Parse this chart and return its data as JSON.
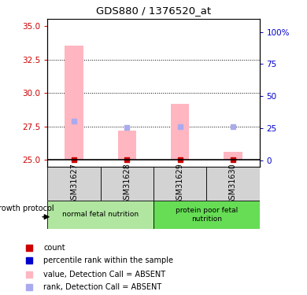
{
  "title": "GDS880 / 1376520_at",
  "samples": [
    "GSM31627",
    "GSM31628",
    "GSM31629",
    "GSM31630"
  ],
  "sample_bg_color": "#D3D3D3",
  "ylim_left": [
    24.5,
    35.5
  ],
  "ylim_right": [
    -5,
    110
  ],
  "yticks_left": [
    25,
    27.5,
    30,
    32.5,
    35
  ],
  "yticks_right": [
    0,
    25,
    50,
    75,
    100
  ],
  "ytick_labels_right": [
    "0",
    "25",
    "50",
    "75",
    "100%"
  ],
  "bar_values": [
    33.5,
    27.2,
    29.2,
    25.6
  ],
  "bar_bottoms": [
    25.0,
    25.0,
    25.0,
    25.0
  ],
  "bar_color": "#FFB6C1",
  "rank_values": [
    27.9,
    27.4,
    27.5,
    27.5
  ],
  "rank_color": "#AAAAEE",
  "count_color": "#CC0000",
  "ylabel_left_color": "#CC0000",
  "ylabel_right_color": "#0000CC",
  "grid_yticks": [
    27.5,
    30.0,
    32.5
  ],
  "group_defs": [
    {
      "span": [
        0,
        1
      ],
      "label": "normal fetal nutrition"
    },
    {
      "span": [
        2,
        3
      ],
      "label": "protein poor fetal\nnutrition"
    }
  ],
  "group_color_light": "#B0E6A0",
  "group_color_bright": "#66DD55",
  "legend_items": [
    {
      "label": "count",
      "color": "#CC0000"
    },
    {
      "label": "percentile rank within the sample",
      "color": "#0000CC"
    },
    {
      "label": "value, Detection Call = ABSENT",
      "color": "#FFB6C1"
    },
    {
      "label": "rank, Detection Call = ABSENT",
      "color": "#AAAAEE"
    }
  ]
}
